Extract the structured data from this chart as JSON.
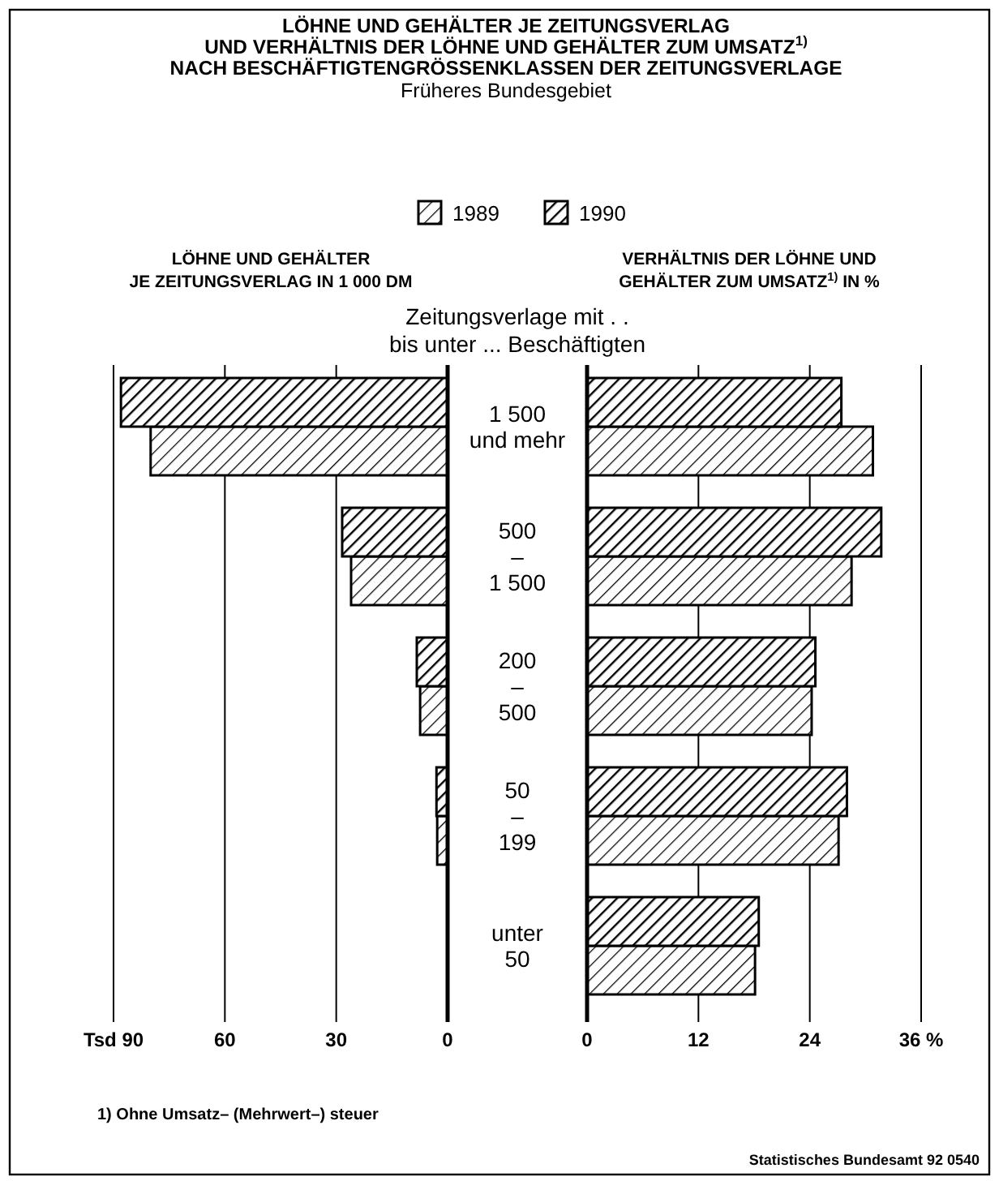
{
  "chart_data": [
    {
      "type": "bar",
      "orientation": "horizontal",
      "title": "LÖHNE UND GEHÄLTER JE ZEITUNGSVERLAG\nUND VERHÄLTNIS DER LÖHNE UND GEHÄLTER ZUM UMSATZ$^{1)}$\nNACH BESCHÄFTIGTENGRÖSSENKLASSEN DER ZEITUNGSVERLAGE",
      "subtitle": "Früheres Bundesgebiet",
      "xlabel": "LÖHNE UND GEHÄLTER\nJE ZEITUNGSVERLAG IN 1 000 DM",
      "ylabel": "Zeitungsverlage mit . .\nbis unter ... Beschäftigten",
      "categories": [
        "1 500\nund mehr",
        "500\n–\n1 500",
        "200\n–\n500",
        "50\n–\n199",
        "unter\n50"
      ],
      "series": [
        {
          "name": "1989",
          "color": "#000000",
          "values": [
            80,
            26,
            7.4,
            2.8,
            null
          ]
        },
        {
          "name": "1990",
          "color": "#000000",
          "values": [
            88,
            28.4,
            8.3,
            3,
            null
          ]
        }
      ],
      "xlim": [
        90,
        0
      ],
      "xticks": [
        {
          "value": 90,
          "label": "Tsd 90"
        },
        60,
        30,
        0
      ],
      "grid": "x",
      "legend": "top",
      "annotations": [
        "1) Ohne Umsatz– (Mehrwert–) steuer",
        "Statistisches Bundesamt 92 0540"
      ]
    },
    {
      "type": "bar",
      "orientation": "horizontal",
      "xlabel": "VERHÄLTNIS DER LÖHNE UND\nGEHÄLTER ZUM UMSATZ$^{1)}$ IN %",
      "categories": [
        null,
        null,
        null,
        null,
        null
      ],
      "series": [
        {
          "color": "#000000",
          "values": [
            30.8,
            28.5,
            24.2,
            27.1,
            18.1
          ]
        },
        {
          "color": "#000000",
          "values": [
            27.4,
            31.7,
            24.6,
            28,
            18.5
          ]
        }
      ],
      "xlim": [
        0,
        36
      ],
      "xticks": [
        0,
        12,
        24,
        {
          "value": 36,
          "label": "36 %"
        }
      ],
      "grid": "x",
      "tick_labels": "x"
    }
  ]
}
